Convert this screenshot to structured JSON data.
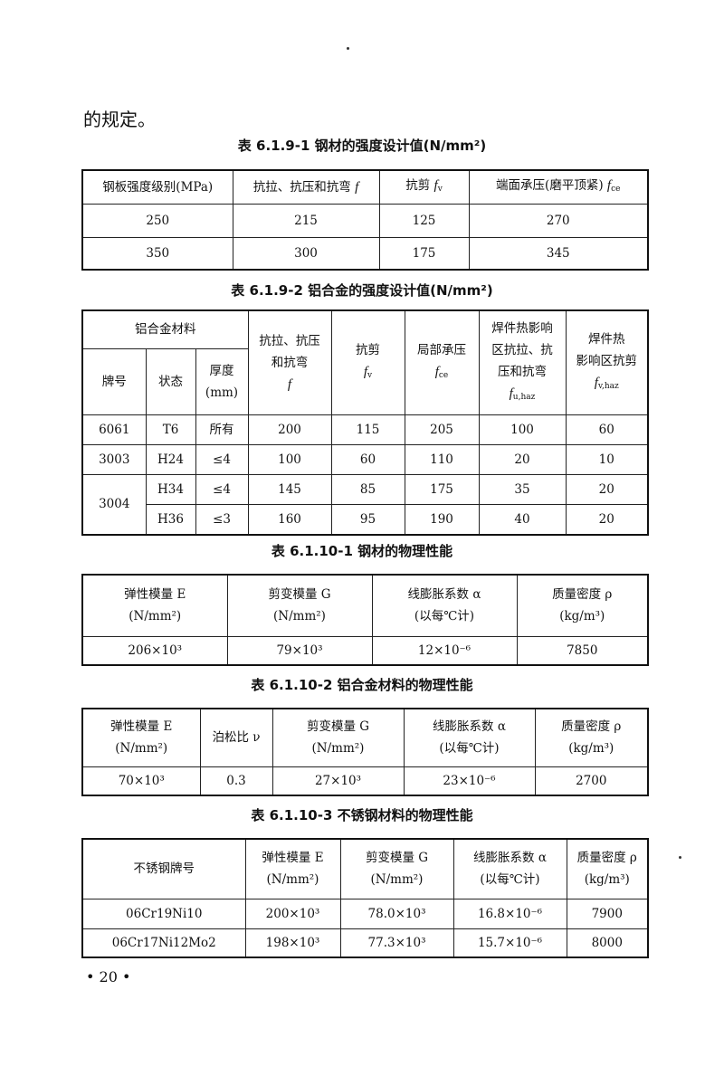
{
  "intro_text": "的规定。",
  "page_number": "• 20 •",
  "tables": [
    {
      "title": "表 6.1.9-1   钢材的强度设计值(N/mm²)",
      "header": [
        [
          {
            "lines": [
              "钢板强度级别(MPa)"
            ]
          },
          {
            "lines": [
              "抗拉、抗压和抗弯"
            ],
            "sym": "f",
            "sym_inline": true
          },
          {
            "lines": [
              "抗剪"
            ],
            "sym": "f",
            "sub": "v",
            "sym_inline": true
          },
          {
            "lines": [
              "端面承压(磨平顶紧)"
            ],
            "sym": "f",
            "sub": "ce",
            "sym_inline": true
          }
        ]
      ],
      "rows": [
        [
          "250",
          "215",
          "125",
          "270"
        ],
        [
          "350",
          "300",
          "175",
          "345"
        ]
      ]
    },
    {
      "title": "表 6.1.9-2   铝合金的强度设计值(N/mm²)",
      "header": [
        [
          {
            "lines": [
              "铝合金材料"
            ],
            "colspan": 3
          },
          {
            "lines": [
              "抗拉、抗压",
              "和抗弯"
            ],
            "sym": "f",
            "rowspan": 2
          },
          {
            "lines": [
              "抗剪"
            ],
            "sym": "f",
            "sub": "v",
            "rowspan": 2
          },
          {
            "lines": [
              "局部承压"
            ],
            "sym": "f",
            "sub": "ce",
            "rowspan": 2
          },
          {
            "lines": [
              "焊件热影响",
              "区抗拉、抗",
              "压和抗弯"
            ],
            "sym": "f",
            "sub": "u,haz",
            "rowspan": 2
          },
          {
            "lines": [
              "焊件热",
              "影响区抗剪"
            ],
            "sym": "f",
            "sub": "v,haz",
            "rowspan": 2
          }
        ],
        [
          {
            "lines": [
              "牌号"
            ]
          },
          {
            "lines": [
              "状态"
            ]
          },
          {
            "lines": [
              "厚度",
              "(mm)"
            ]
          }
        ]
      ],
      "rows": [
        [
          "6061",
          "T6",
          "所有",
          "200",
          "115",
          "205",
          "100",
          "60"
        ],
        [
          "3003",
          "H24",
          "≤4",
          "100",
          "60",
          "110",
          "20",
          "10"
        ],
        [
          {
            "text": "3004",
            "rowspan": 2
          },
          "H34",
          "≤4",
          "145",
          "85",
          "175",
          "35",
          "20"
        ],
        [
          "H36",
          "≤3",
          "160",
          "95",
          "190",
          "40",
          "20"
        ]
      ]
    },
    {
      "title": "表 6.1.10-1   钢材的物理性能",
      "header": [
        [
          {
            "lines": [
              "弹性模量 E",
              "(N/mm²)"
            ]
          },
          {
            "lines": [
              "剪变模量 G",
              "(N/mm²)"
            ]
          },
          {
            "lines": [
              "线膨胀系数 α",
              "(以每℃计)"
            ]
          },
          {
            "lines": [
              "质量密度 ρ",
              "(kg/m³)"
            ]
          }
        ]
      ],
      "rows": [
        [
          "206×10³",
          "79×10³",
          "12×10⁻⁶",
          "7850"
        ]
      ]
    },
    {
      "title": "表 6.1.10-2   铝合金材料的物理性能",
      "header": [
        [
          {
            "lines": [
              "弹性模量 E",
              "(N/mm²)"
            ]
          },
          {
            "lines": [
              "泊松比 ν"
            ]
          },
          {
            "lines": [
              "剪变模量 G",
              "(N/mm²)"
            ]
          },
          {
            "lines": [
              "线膨胀系数 α",
              "(以每℃计)"
            ]
          },
          {
            "lines": [
              "质量密度 ρ",
              "(kg/m³)"
            ]
          }
        ]
      ],
      "rows": [
        [
          "70×10³",
          "0.3",
          "27×10³",
          "23×10⁻⁶",
          "2700"
        ]
      ]
    },
    {
      "title": "表 6.1.10-3   不锈钢材料的物理性能",
      "header": [
        [
          {
            "lines": [
              "不锈钢牌号"
            ]
          },
          {
            "lines": [
              "弹性模量 E",
              "(N/mm²)"
            ]
          },
          {
            "lines": [
              "剪变模量 G",
              "(N/mm²)"
            ]
          },
          {
            "lines": [
              "线膨胀系数 α",
              "(以每℃计)"
            ]
          },
          {
            "lines": [
              "质量密度 ρ",
              "(kg/m³)"
            ]
          }
        ]
      ],
      "rows": [
        [
          "06Cr19Ni10",
          "200×10³",
          "78.0×10³",
          "16.8×10⁻⁶",
          "7900"
        ],
        [
          "06Cr17Ni12Mo2",
          "198×10³",
          "77.3×10³",
          "15.7×10⁻⁶",
          "8000"
        ]
      ]
    }
  ]
}
